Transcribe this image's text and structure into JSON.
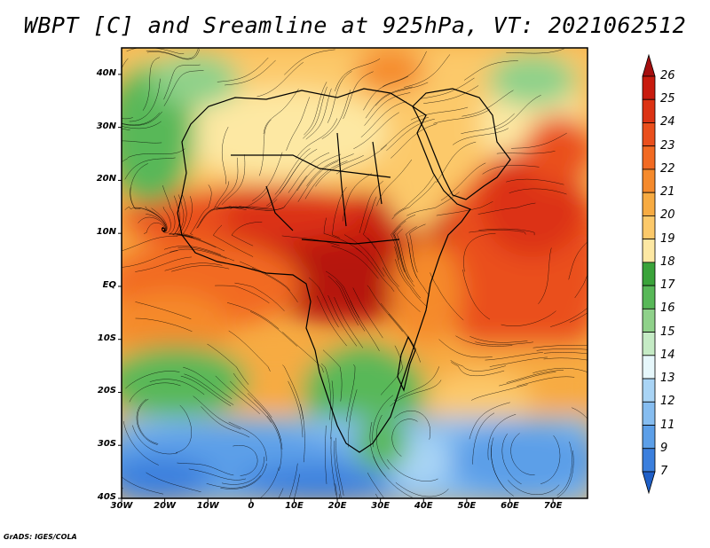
{
  "title": "WBPT [C] and Sreamline at 925hPa, VT: 2021062512",
  "credit": "GrADS: IGES/COLA",
  "map": {
    "lat_labels": [
      "40N",
      "30N",
      "20N",
      "10N",
      "EQ",
      "10S",
      "20S",
      "30S",
      "40S"
    ],
    "lon_labels": [
      "30W",
      "20W",
      "10W",
      "0",
      "10E",
      "20E",
      "30E",
      "40E",
      "50E",
      "60E",
      "70E"
    ],
    "lat_range": [
      -40,
      45
    ],
    "lon_range": [
      -30,
      78
    ]
  },
  "colorbar": {
    "levels": [
      "26",
      "25",
      "24",
      "23",
      "22",
      "21",
      "20",
      "19",
      "18",
      "17",
      "16",
      "15",
      "14",
      "13",
      "12",
      "11",
      "9",
      "7"
    ],
    "colors": [
      "#a50f0f",
      "#c81b0e",
      "#dc3314",
      "#ea4f1c",
      "#f26a22",
      "#f58a2c",
      "#f7ab42",
      "#fcc96a",
      "#fde8a3",
      "#3aa33a",
      "#58b858",
      "#8fd18a",
      "#c5ebc5",
      "#e6f7fb",
      "#a9d4f5",
      "#86bdf0",
      "#5c9fe8",
      "#3b7fdd",
      "#1f5fc7"
    ]
  }
}
